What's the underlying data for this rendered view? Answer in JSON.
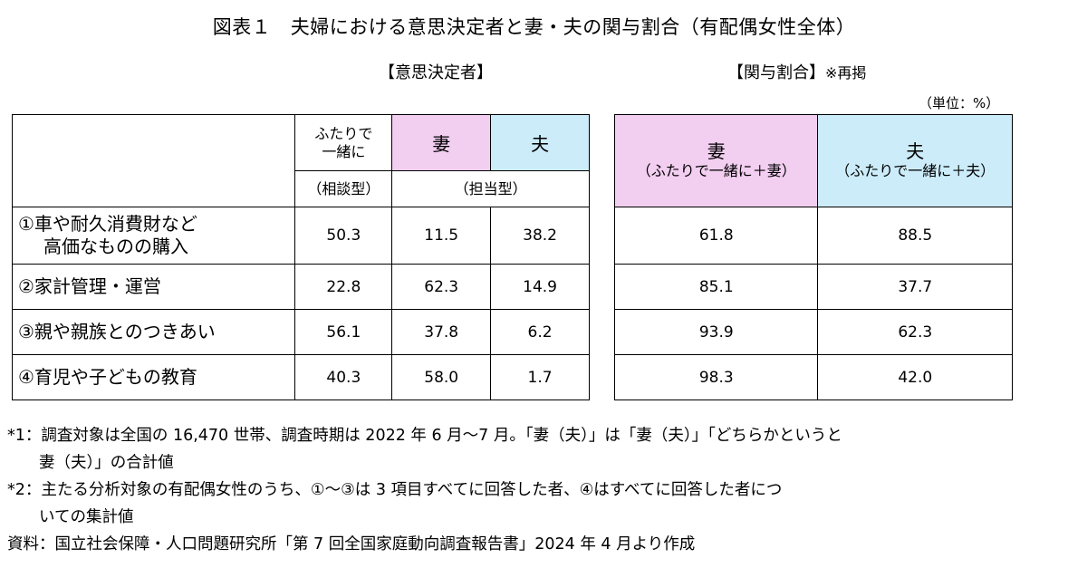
{
  "title": "図表１　夫婦における意思決定者と妻・夫の関与割合（有配偶女性全体）",
  "subheads": {
    "decision": "【意思決定者】",
    "involvement": "【関与割合】",
    "involvement_note": "※再掲",
    "unit": "（単位：%）"
  },
  "left_table": {
    "col_together": "ふたりで\n一緒に",
    "col_wife": "妻",
    "col_husband": "夫",
    "type_consult": "（相談型）",
    "type_charge": "（担当型）"
  },
  "right_table": {
    "col_wife": "妻",
    "col_wife_sub": "（ふたりで一緒に＋妻）",
    "col_husband": "夫",
    "col_husband_sub": "（ふたりで一緒に＋夫）"
  },
  "rows": [
    {
      "label1": "①車や耐久消費財など",
      "label2": "高価なものの購入",
      "together": "50.3",
      "wife": "11.5",
      "husband": "38.2",
      "inv_wife": "61.8",
      "inv_husband": "88.5"
    },
    {
      "label1": "②家計管理・運営",
      "label2": "",
      "together": "22.8",
      "wife": "62.3",
      "husband": "14.9",
      "inv_wife": "85.1",
      "inv_husband": "37.7"
    },
    {
      "label1": "③親や親族とのつきあい",
      "label2": "",
      "together": "56.1",
      "wife": "37.8",
      "husband": "6.2",
      "inv_wife": "93.9",
      "inv_husband": "62.3"
    },
    {
      "label1": "④育児や子どもの教育",
      "label2": "",
      "together": "40.3",
      "wife": "58.0",
      "husband": "1.7",
      "inv_wife": "98.3",
      "inv_husband": "42.0"
    }
  ],
  "notes": {
    "n1_line1": "*1：調査対象は全国の 16,470 世帯、調査時期は 2022 年 6 月～7 月。「妻（夫）」は「妻（夫）」「どちらかというと",
    "n1_line2": "妻（夫）」の合計値",
    "n2_line1": "*2：主たる分析対象の有配偶女性のうち、①～③は 3 項目すべてに回答した者、④はすべてに回答した者につ",
    "n2_line2": "いての集計値",
    "source": "資料：国立社会保障・人口問題研究所「第 7 回全国家庭動向調査報告書」2024 年 4 月より作成"
  },
  "colors": {
    "wife_bg": "#f2cef0",
    "husband_bg": "#ccecfa"
  }
}
